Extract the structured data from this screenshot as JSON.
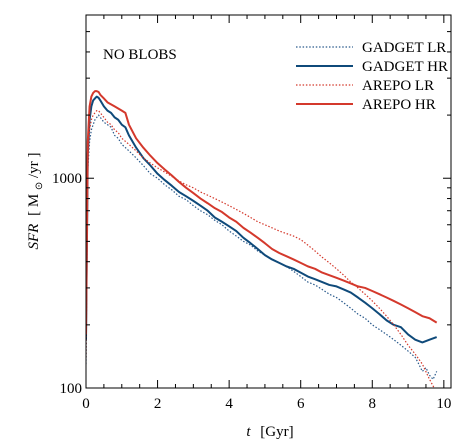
{
  "chart_data": {
    "type": "line",
    "annotation": "NO BLOBS",
    "xlabel": {
      "var": "t",
      "unit": "[Gyr]"
    },
    "ylabel": {
      "var": "SFR",
      "unit_open": "[ M",
      "unit_sub": "⊙",
      "unit_close": "/yr ]"
    },
    "xlim": [
      0,
      10.2
    ],
    "ylim": [
      100,
      6000
    ],
    "yscale": "log",
    "x_ticks": [
      0,
      2,
      4,
      6,
      8,
      10
    ],
    "x_tick_labels": [
      "0",
      "2",
      "4",
      "6",
      "8",
      "10"
    ],
    "y_ticks": [
      100,
      1000
    ],
    "y_tick_labels": [
      "100",
      "1000"
    ],
    "legend_position": "top-right",
    "series": [
      {
        "name": "GADGET LR",
        "color": "#2a5a8c",
        "dash": "dotted",
        "x": [
          0.0,
          0.05,
          0.1,
          0.15,
          0.2,
          0.25,
          0.3,
          0.35,
          0.4,
          0.5,
          0.6,
          0.7,
          0.8,
          0.9,
          1.0,
          1.1,
          1.2,
          1.4,
          1.6,
          1.8,
          2.0,
          2.2,
          2.4,
          2.6,
          2.8,
          3.0,
          3.2,
          3.4,
          3.6,
          3.8,
          4.0,
          4.2,
          4.4,
          4.6,
          4.8,
          5.0,
          5.2,
          5.4,
          5.6,
          5.8,
          6.0,
          6.2,
          6.4,
          6.6,
          6.8,
          7.0,
          7.2,
          7.4,
          7.6,
          7.8,
          8.0,
          8.2,
          8.4,
          8.6,
          8.8,
          9.0,
          9.1,
          9.2,
          9.3,
          9.4,
          9.5,
          9.6,
          9.7,
          9.8
        ],
        "y": [
          130,
          1100,
          1500,
          1700,
          1800,
          1900,
          1950,
          2000,
          1950,
          1850,
          1800,
          1750,
          1600,
          1550,
          1450,
          1400,
          1350,
          1250,
          1150,
          1050,
          1000,
          930,
          880,
          820,
          790,
          740,
          700,
          670,
          630,
          600,
          560,
          530,
          500,
          480,
          450,
          430,
          410,
          395,
          380,
          360,
          340,
          320,
          310,
          295,
          280,
          270,
          255,
          240,
          225,
          215,
          200,
          190,
          180,
          170,
          160,
          150,
          145,
          140,
          130,
          120,
          125,
          115,
          110,
          120
        ]
      },
      {
        "name": "GADGET HR",
        "color": "#0f4a7a",
        "dash": "solid",
        "x": [
          0.0,
          0.05,
          0.1,
          0.15,
          0.2,
          0.25,
          0.3,
          0.35,
          0.4,
          0.5,
          0.6,
          0.7,
          0.8,
          0.9,
          1.0,
          1.1,
          1.2,
          1.4,
          1.6,
          1.8,
          2.0,
          2.2,
          2.4,
          2.6,
          2.8,
          3.0,
          3.2,
          3.4,
          3.6,
          3.8,
          4.0,
          4.2,
          4.4,
          4.6,
          4.8,
          5.0,
          5.2,
          5.4,
          5.6,
          5.8,
          6.0,
          6.2,
          6.4,
          6.6,
          6.8,
          7.0,
          7.2,
          7.4,
          7.6,
          7.8,
          8.0,
          8.2,
          8.4,
          8.6,
          8.8,
          9.0,
          9.2,
          9.4,
          9.6,
          9.8
        ],
        "y": [
          170,
          1300,
          1900,
          2200,
          2350,
          2400,
          2450,
          2420,
          2350,
          2200,
          2100,
          2050,
          1950,
          1900,
          1800,
          1750,
          1600,
          1400,
          1250,
          1150,
          1050,
          980,
          920,
          860,
          820,
          780,
          740,
          700,
          650,
          620,
          590,
          560,
          520,
          490,
          460,
          430,
          410,
          395,
          380,
          370,
          355,
          340,
          330,
          320,
          310,
          305,
          295,
          285,
          270,
          255,
          240,
          225,
          210,
          200,
          195,
          180,
          170,
          165,
          170,
          175
        ]
      },
      {
        "name": "AREPO LR",
        "color": "#d4392c",
        "dash": "dotted",
        "x": [
          0.0,
          0.05,
          0.1,
          0.15,
          0.2,
          0.25,
          0.3,
          0.35,
          0.4,
          0.5,
          0.6,
          0.7,
          0.8,
          0.9,
          1.0,
          1.1,
          1.2,
          1.4,
          1.6,
          1.8,
          2.0,
          2.2,
          2.4,
          2.6,
          2.8,
          3.0,
          3.2,
          3.4,
          3.6,
          3.8,
          4.0,
          4.2,
          4.4,
          4.6,
          4.8,
          5.0,
          5.2,
          5.4,
          5.6,
          5.8,
          6.0,
          6.2,
          6.4,
          6.6,
          6.8,
          7.0,
          7.2,
          7.4,
          7.6,
          7.8,
          8.0,
          8.2,
          8.4,
          8.6,
          8.8,
          9.0,
          9.2,
          9.4,
          9.6,
          9.8
        ],
        "y": [
          140,
          1200,
          1700,
          1900,
          2000,
          2050,
          2100,
          2100,
          2050,
          1950,
          1850,
          1800,
          1700,
          1650,
          1550,
          1500,
          1450,
          1350,
          1250,
          1180,
          1120,
          1070,
          1020,
          970,
          930,
          900,
          860,
          830,
          800,
          770,
          740,
          710,
          680,
          650,
          620,
          600,
          580,
          560,
          545,
          530,
          510,
          480,
          450,
          420,
          395,
          370,
          345,
          320,
          300,
          280,
          260,
          240,
          220,
          200,
          180,
          160,
          145,
          130,
          110,
          95
        ]
      },
      {
        "name": "AREPO HR",
        "color": "#d4392c",
        "dash": "solid",
        "x": [
          0.0,
          0.05,
          0.1,
          0.15,
          0.2,
          0.25,
          0.3,
          0.35,
          0.4,
          0.5,
          0.6,
          0.7,
          0.8,
          0.9,
          1.0,
          1.1,
          1.2,
          1.4,
          1.6,
          1.8,
          2.0,
          2.2,
          2.4,
          2.6,
          2.8,
          3.0,
          3.2,
          3.4,
          3.6,
          3.8,
          4.0,
          4.2,
          4.4,
          4.6,
          4.8,
          5.0,
          5.2,
          5.4,
          5.6,
          5.8,
          6.0,
          6.2,
          6.4,
          6.6,
          6.8,
          7.0,
          7.2,
          7.4,
          7.6,
          7.8,
          8.0,
          8.2,
          8.4,
          8.6,
          8.8,
          9.0,
          9.2,
          9.4,
          9.6,
          9.8
        ],
        "y": [
          180,
          1500,
          2200,
          2450,
          2550,
          2600,
          2600,
          2580,
          2500,
          2400,
          2300,
          2250,
          2200,
          2150,
          2100,
          2050,
          1800,
          1550,
          1400,
          1280,
          1180,
          1100,
          1030,
          960,
          900,
          850,
          800,
          760,
          720,
          690,
          650,
          620,
          580,
          550,
          520,
          490,
          460,
          440,
          425,
          410,
          395,
          380,
          370,
          355,
          345,
          335,
          325,
          315,
          305,
          300,
          290,
          280,
          270,
          260,
          250,
          240,
          230,
          220,
          215,
          205
        ]
      }
    ]
  }
}
